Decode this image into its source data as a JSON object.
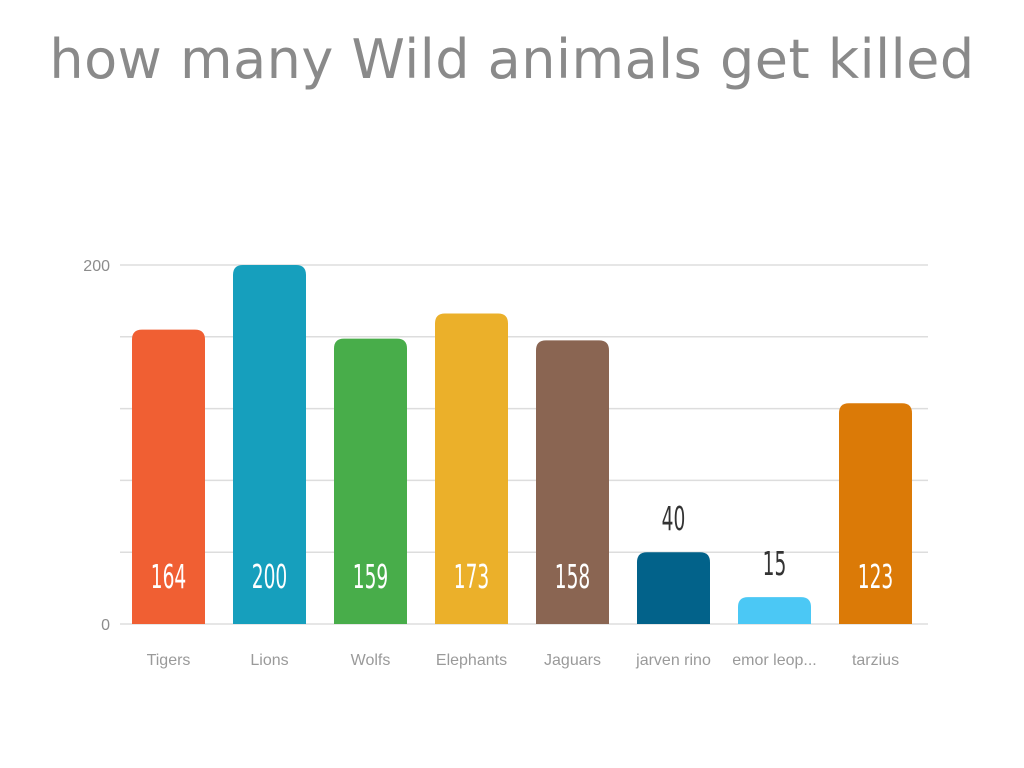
{
  "title": "how many Wild animals get killed",
  "chart_data": {
    "type": "bar",
    "title": "how many Wild animals get killed",
    "xlabel": "",
    "ylabel": "",
    "categories": [
      "Tigers",
      "Lions",
      "Wolfs",
      "Elephants",
      "Jaguars",
      "jarven rino",
      "emor leop...",
      "tarzius"
    ],
    "values": [
      164,
      200,
      159,
      173,
      158,
      40,
      15,
      123
    ],
    "data_labels": [
      "164",
      "200",
      "159",
      "173",
      "158",
      "40",
      "15",
      "123"
    ],
    "colors": [
      "#f05f33",
      "#169fbd",
      "#48ad4a",
      "#ebb02a",
      "#8a6552",
      "#02628a",
      "#4bc8f5",
      "#db7a07"
    ],
    "ylim": [
      0,
      200
    ],
    "yticks": [
      "0",
      "200"
    ],
    "gridlines": true,
    "legend": "none"
  }
}
